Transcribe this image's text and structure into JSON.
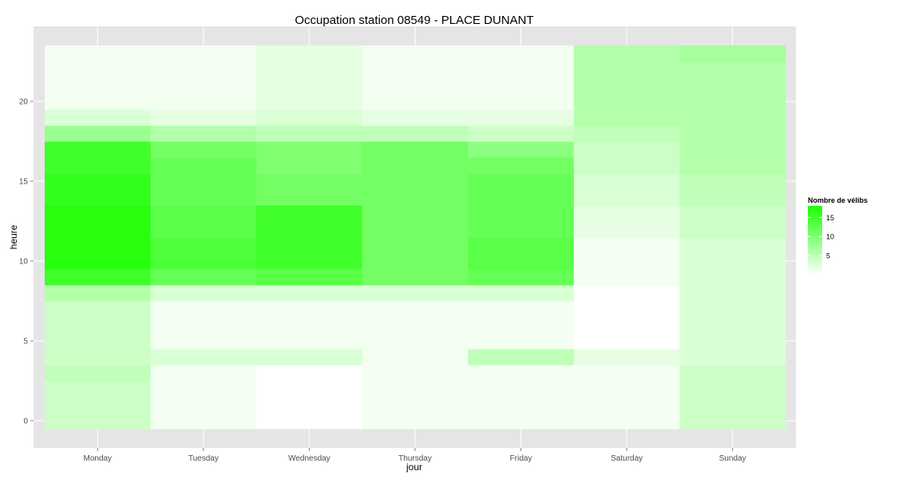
{
  "chart_data": {
    "type": "heatmap",
    "title": "Occupation station 08549 - PLACE DUNANT",
    "xlabel": "jour",
    "ylabel": "heure",
    "x_categories": [
      "Monday",
      "Tuesday",
      "Wednesday",
      "Thursday",
      "Friday",
      "Saturday",
      "Sunday"
    ],
    "y_ticks": [
      0,
      5,
      10,
      15,
      20
    ],
    "ylim": [
      -0.5,
      23.5
    ],
    "grid": true,
    "legend": {
      "title": "Nombre de vélibs",
      "ticks": [
        5,
        10,
        15
      ],
      "range": [
        0,
        18
      ],
      "low_color": "#ffffff",
      "high_color": "#1aff00",
      "placement": "right"
    },
    "values_by_day": {
      "Monday": [
        4,
        4,
        4,
        5,
        4,
        4,
        4,
        4,
        6,
        15,
        17,
        17,
        17,
        17,
        16,
        16,
        15,
        15,
        8,
        3,
        1,
        1,
        1,
        1
      ],
      "Tuesday": [
        1,
        1,
        1,
        1,
        3,
        1,
        1,
        1,
        3,
        12,
        14,
        14,
        13,
        13,
        12,
        12,
        12,
        11,
        6,
        2,
        1,
        1,
        1,
        1
      ],
      "Wednesday": [
        0,
        0,
        0,
        0,
        3,
        1,
        1,
        1,
        3,
        13,
        15,
        15,
        15,
        15,
        11,
        11,
        10,
        10,
        5,
        3,
        2,
        2,
        2,
        2
      ],
      "Thursday": [
        1,
        1,
        1,
        1,
        1,
        1,
        1,
        1,
        3,
        11,
        11,
        11,
        11,
        11,
        11,
        11,
        11,
        11,
        5,
        2,
        1,
        1,
        1,
        1
      ],
      "Friday": [
        1,
        1,
        1,
        1,
        5,
        1,
        1,
        1,
        3,
        12,
        13,
        13,
        12,
        12,
        12,
        12,
        11,
        9,
        4,
        2,
        1,
        1,
        1,
        1
      ],
      "Saturday": [
        1,
        1,
        1,
        1,
        2,
        0,
        0,
        0,
        0,
        1,
        1,
        1,
        2,
        2,
        3,
        3,
        4,
        4,
        5,
        6,
        6,
        6,
        6,
        6
      ],
      "Sunday": [
        4,
        4,
        4,
        4,
        3,
        3,
        3,
        3,
        3,
        3,
        3,
        3,
        4,
        4,
        5,
        5,
        6,
        6,
        6,
        6,
        6,
        6,
        6,
        7
      ]
    }
  }
}
